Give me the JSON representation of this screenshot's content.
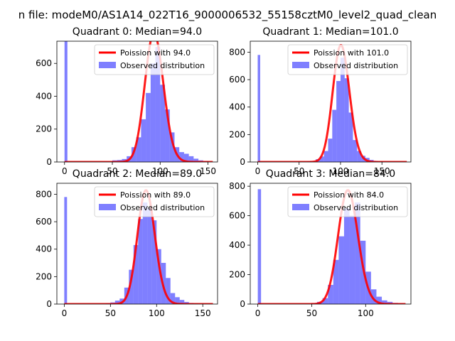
{
  "figure": {
    "suptitle": "n file: modeM0/AS1A14_022T16_9000006532_55158cztM0_level2_quad_clean"
  },
  "chart_data": [
    {
      "type": "bar",
      "title": "Quadrant 0: Median=94.0",
      "median": 94.0,
      "xlim": [
        -8,
        160
      ],
      "ylim": [
        0,
        735
      ],
      "xticks": [
        0,
        50,
        100,
        150
      ],
      "yticks": [
        0,
        200,
        400,
        600
      ],
      "legend": {
        "position": "top-right",
        "line_label": "Poission with 94.0",
        "bar_label": "Observed distribution"
      },
      "zero_bin": 760,
      "bins": [
        [
          50,
          10
        ],
        [
          55,
          12
        ],
        [
          60,
          18
        ],
        [
          65,
          35
        ],
        [
          70,
          90
        ],
        [
          75,
          150
        ],
        [
          80,
          260
        ],
        [
          85,
          420
        ],
        [
          90,
          600
        ],
        [
          95,
          700
        ],
        [
          100,
          470
        ],
        [
          105,
          320
        ],
        [
          110,
          180
        ],
        [
          115,
          90
        ],
        [
          120,
          60
        ],
        [
          125,
          50
        ],
        [
          130,
          35
        ],
        [
          135,
          20
        ],
        [
          140,
          10
        ],
        [
          145,
          5
        ]
      ]
    },
    {
      "type": "bar",
      "title": "Quadrant 1: Median=101.0",
      "median": 101.0,
      "xlim": [
        -9,
        185
      ],
      "ylim": [
        0,
        880
      ],
      "xticks": [
        0,
        50,
        100,
        150
      ],
      "yticks": [
        0,
        200,
        400,
        600,
        800
      ],
      "legend": {
        "position": "top-right",
        "line_label": "Poission with 101.0",
        "bar_label": "Observed distribution"
      },
      "zero_bin": 780,
      "bins": [
        [
          60,
          5
        ],
        [
          70,
          20
        ],
        [
          75,
          40
        ],
        [
          80,
          80
        ],
        [
          85,
          170
        ],
        [
          90,
          380
        ],
        [
          95,
          590
        ],
        [
          100,
          760
        ],
        [
          105,
          610
        ],
        [
          110,
          360
        ],
        [
          115,
          160
        ],
        [
          120,
          80
        ],
        [
          125,
          45
        ],
        [
          130,
          30
        ],
        [
          135,
          15
        ],
        [
          140,
          8
        ],
        [
          145,
          4
        ]
      ]
    },
    {
      "type": "bar",
      "title": "Quadrant 2: Median=89.0",
      "median": 89.0,
      "xlim": [
        -8,
        166
      ],
      "ylim": [
        0,
        880
      ],
      "xticks": [
        0,
        50,
        100,
        150
      ],
      "yticks": [
        0,
        200,
        400,
        600,
        800
      ],
      "legend": {
        "position": "top-right",
        "line_label": "Poission with 89.0",
        "bar_label": "Observed distribution"
      },
      "zero_bin": 780,
      "bins": [
        [
          45,
          5
        ],
        [
          50,
          12
        ],
        [
          55,
          25
        ],
        [
          60,
          40
        ],
        [
          65,
          120
        ],
        [
          70,
          250
        ],
        [
          75,
          430
        ],
        [
          80,
          620
        ],
        [
          85,
          740
        ],
        [
          90,
          700
        ],
        [
          95,
          610
        ],
        [
          100,
          400
        ],
        [
          105,
          300
        ],
        [
          110,
          190
        ],
        [
          115,
          80
        ],
        [
          120,
          50
        ],
        [
          125,
          30
        ],
        [
          130,
          15
        ],
        [
          135,
          8
        ],
        [
          140,
          4
        ]
      ]
    },
    {
      "type": "bar",
      "title": "Quadrant 3: Median=84.0",
      "median": 84.0,
      "xlim": [
        -7,
        142
      ],
      "ylim": [
        0,
        820
      ],
      "xticks": [
        0,
        50,
        100
      ],
      "yticks": [
        0,
        200,
        400,
        600,
        800
      ],
      "legend": {
        "position": "top-right",
        "line_label": "Poission with 84.0",
        "bar_label": "Observed distribution"
      },
      "zero_bin": 780,
      "bins": [
        [
          50,
          5
        ],
        [
          55,
          15
        ],
        [
          60,
          40
        ],
        [
          65,
          130
        ],
        [
          70,
          300
        ],
        [
          75,
          460
        ],
        [
          80,
          650
        ],
        [
          85,
          600
        ],
        [
          90,
          690
        ],
        [
          95,
          430
        ],
        [
          100,
          220
        ],
        [
          105,
          100
        ],
        [
          110,
          50
        ],
        [
          115,
          25
        ],
        [
          120,
          15
        ],
        [
          125,
          8
        ],
        [
          130,
          4
        ]
      ]
    }
  ]
}
